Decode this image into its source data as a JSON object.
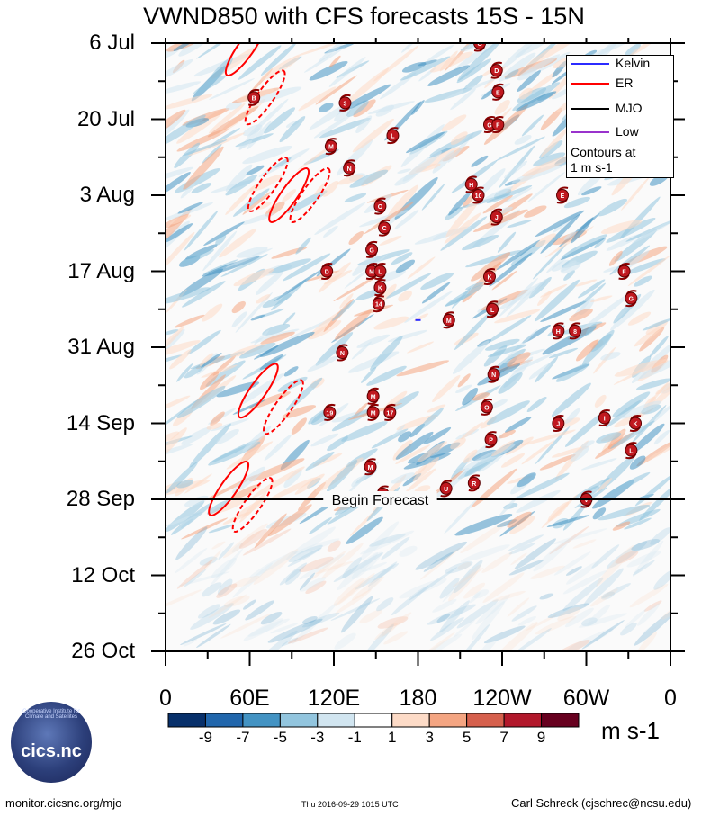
{
  "title": "VWND850 with CFS forecasts  15S - 15N",
  "chart_data": {
    "type": "heatmap",
    "title": "VWND850 with CFS forecasts  15S - 15N",
    "x_ticks": [
      "0",
      "60E",
      "120E",
      "180",
      "120W",
      "60W",
      "0"
    ],
    "x_values": [
      0,
      60,
      120,
      180,
      240,
      300,
      360
    ],
    "xlim": [
      0,
      360
    ],
    "y_ticks": [
      "6 Jul",
      "20 Jul",
      "3 Aug",
      "17 Aug",
      "31 Aug",
      "14 Sep",
      "28 Sep",
      "12 Oct",
      "26 Oct"
    ],
    "y_days": [
      0,
      14,
      28,
      42,
      56,
      70,
      84,
      98,
      112
    ],
    "ylim_days": [
      0,
      112
    ],
    "colorbar": {
      "levels": [
        -9,
        -7,
        -5,
        -3,
        -1,
        1,
        3,
        5,
        7,
        9
      ],
      "labels": [
        "-9",
        "-7",
        "-5",
        "-3",
        "-1",
        "1",
        "3",
        "5",
        "7",
        "9"
      ],
      "colors": [
        "#08306b",
        "#2166ac",
        "#4393c3",
        "#92c5de",
        "#d1e5f0",
        "#ffffff",
        "#fddbc7",
        "#f4a582",
        "#d6604d",
        "#b2182b",
        "#67001f"
      ],
      "units": "m s-1"
    },
    "forecast_line": {
      "label": "Begin Forecast",
      "day": 84
    },
    "legend": {
      "entries": [
        {
          "name": "Kelvin",
          "color": "#2b2bff"
        },
        {
          "name": "ER",
          "color": "#ff0000"
        },
        {
          "name": "MJO",
          "color": "#000000"
        },
        {
          "name": "Low",
          "color": "#9932cc"
        }
      ],
      "note_line1": "Contours at",
      "note_line2": "1 m s-1",
      "placement": "top-right"
    },
    "er_contours": [
      {
        "lon": 57,
        "day": 1,
        "style": "solid"
      },
      {
        "lon": 71,
        "day": 10,
        "style": "dashed"
      },
      {
        "lon": 73,
        "day": 26,
        "style": "dashed"
      },
      {
        "lon": 88,
        "day": 28,
        "style": "solid"
      },
      {
        "lon": 103,
        "day": 28,
        "style": "dashed"
      },
      {
        "lon": 66,
        "day": 64,
        "style": "solid"
      },
      {
        "lon": 84,
        "day": 67,
        "style": "dashed"
      },
      {
        "lon": 45,
        "day": 82,
        "style": "solid"
      },
      {
        "lon": 62,
        "day": 85,
        "style": "dashed"
      }
    ],
    "kelvin_contours": [
      {
        "lon": 180,
        "day": 51
      }
    ],
    "storms": [
      {
        "letter": "G",
        "lon": 224,
        "day": 0
      },
      {
        "letter": "D",
        "lon": 236,
        "day": 5
      },
      {
        "letter": "E",
        "lon": 237,
        "day": 9
      },
      {
        "letter": "B",
        "lon": 63,
        "day": 10
      },
      {
        "letter": "3",
        "lon": 128,
        "day": 11
      },
      {
        "letter": "G",
        "lon": 231,
        "day": 15
      },
      {
        "letter": "F",
        "lon": 237,
        "day": 15
      },
      {
        "letter": "L",
        "lon": 162,
        "day": 17
      },
      {
        "letter": "M",
        "lon": 118,
        "day": 19
      },
      {
        "letter": "N",
        "lon": 131,
        "day": 23
      },
      {
        "letter": "H",
        "lon": 218,
        "day": 26
      },
      {
        "letter": "10",
        "lon": 223,
        "day": 28
      },
      {
        "letter": "E",
        "lon": 283,
        "day": 28
      },
      {
        "letter": "O",
        "lon": 153,
        "day": 30
      },
      {
        "letter": "J",
        "lon": 236,
        "day": 32
      },
      {
        "letter": "C",
        "lon": 156,
        "day": 34
      },
      {
        "letter": "G",
        "lon": 147,
        "day": 38
      },
      {
        "letter": "D",
        "lon": 115,
        "day": 42
      },
      {
        "letter": "M",
        "lon": 147,
        "day": 42
      },
      {
        "letter": "L",
        "lon": 153,
        "day": 42
      },
      {
        "letter": "K",
        "lon": 153,
        "day": 45
      },
      {
        "letter": "14",
        "lon": 152,
        "day": 48
      },
      {
        "letter": "K",
        "lon": 231,
        "day": 43
      },
      {
        "letter": "F",
        "lon": 327,
        "day": 42
      },
      {
        "letter": "G",
        "lon": 332,
        "day": 47
      },
      {
        "letter": "L",
        "lon": 233,
        "day": 49
      },
      {
        "letter": "M",
        "lon": 202,
        "day": 51
      },
      {
        "letter": "H",
        "lon": 280,
        "day": 53
      },
      {
        "letter": "8",
        "lon": 292,
        "day": 53
      },
      {
        "letter": "N",
        "lon": 126,
        "day": 57
      },
      {
        "letter": "N",
        "lon": 234,
        "day": 61
      },
      {
        "letter": "M",
        "lon": 148,
        "day": 65
      },
      {
        "letter": "19",
        "lon": 117,
        "day": 68
      },
      {
        "letter": "M",
        "lon": 148,
        "day": 68
      },
      {
        "letter": "17",
        "lon": 160,
        "day": 68
      },
      {
        "letter": "O",
        "lon": 229,
        "day": 67
      },
      {
        "letter": "I",
        "lon": 313,
        "day": 69
      },
      {
        "letter": "J",
        "lon": 280,
        "day": 70
      },
      {
        "letter": "K",
        "lon": 335,
        "day": 70
      },
      {
        "letter": "P",
        "lon": 232,
        "day": 73
      },
      {
        "letter": "L",
        "lon": 332,
        "day": 75
      },
      {
        "letter": "M",
        "lon": 146,
        "day": 78
      },
      {
        "letter": "R",
        "lon": 220,
        "day": 81
      },
      {
        "letter": "U",
        "lon": 200,
        "day": 82
      },
      {
        "letter": "R",
        "lon": 155,
        "day": 83
      },
      {
        "letter": "V",
        "lon": 300,
        "day": 84
      }
    ]
  },
  "footer": {
    "site": "monitor.cicsnc.org/mjo",
    "timestamp": "Thu 2016-09-29 1015 UTC",
    "author": "Carl Schreck (cjschrec@ncsu.edu)"
  },
  "logo": {
    "text": "cics.nc",
    "arc_text": "Cooperative Institute for Climate and Satellites"
  }
}
